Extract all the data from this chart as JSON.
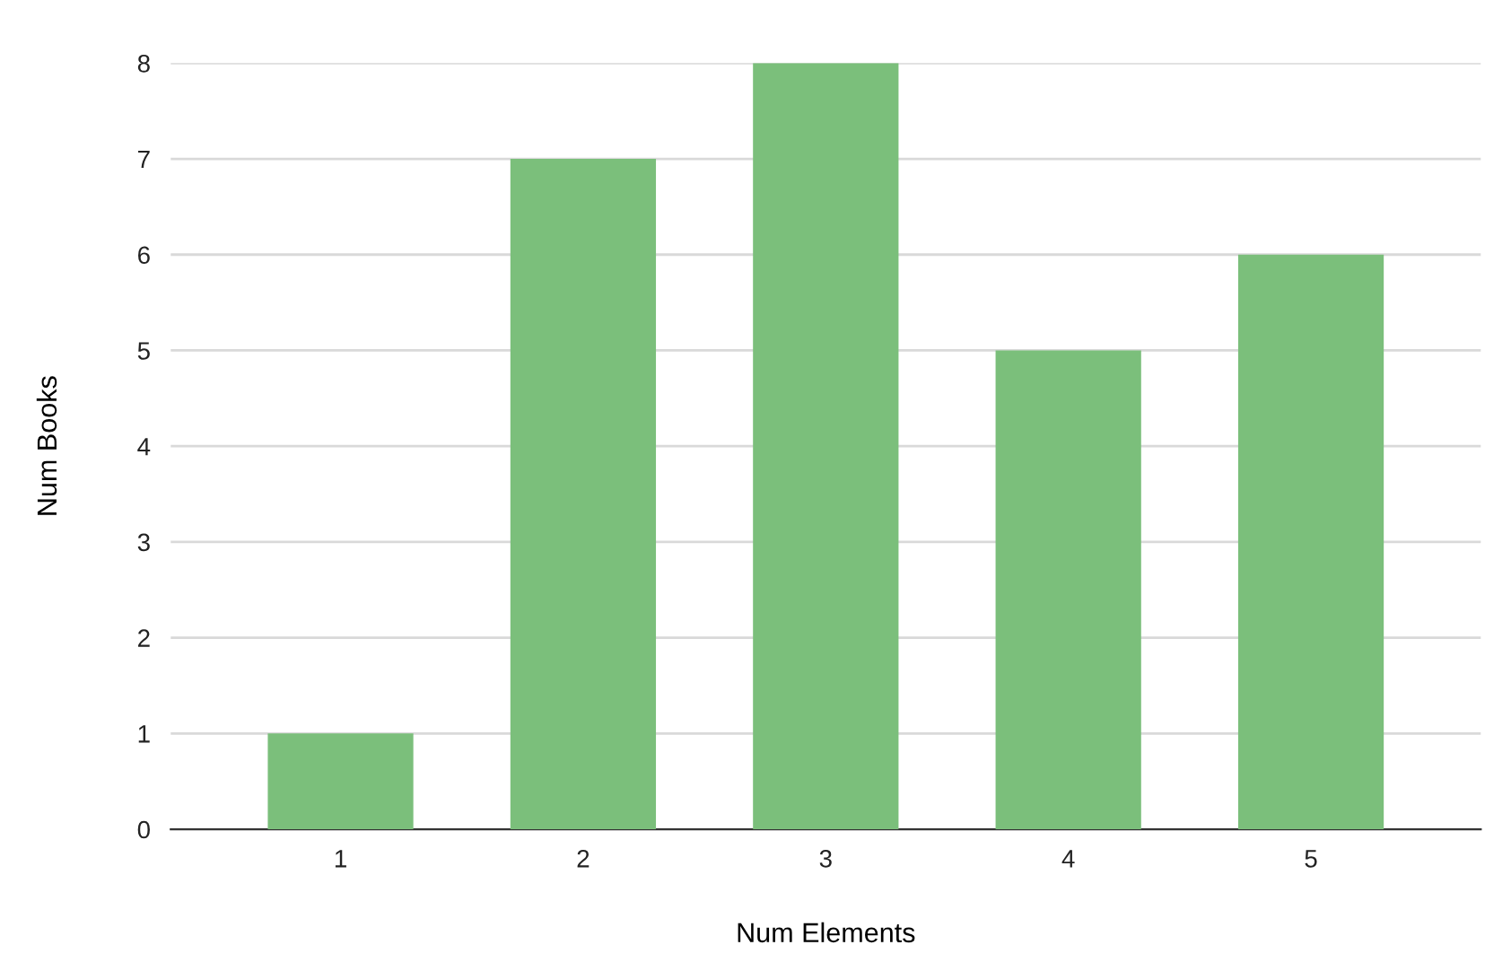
{
  "chart_data": {
    "type": "bar",
    "xlabel": "Num Elements",
    "ylabel": "Num Books",
    "categories": [
      "1",
      "2",
      "3",
      "4",
      "5"
    ],
    "values": [
      1,
      7,
      8,
      5,
      6
    ],
    "color": "#7bbf7b",
    "ylim": [
      0,
      8
    ],
    "yticks": [
      0,
      1,
      2,
      3,
      4,
      5,
      6,
      7,
      8
    ],
    "grid": "y"
  }
}
